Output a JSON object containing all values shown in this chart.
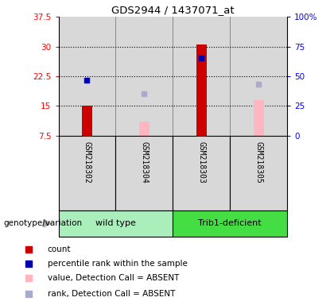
{
  "title": "GDS2944 / 1437071_at",
  "samples": [
    "GSM218302",
    "GSM218304",
    "GSM218303",
    "GSM218305"
  ],
  "ylim_left": [
    7.5,
    37.5
  ],
  "yticks_left": [
    7.5,
    15.0,
    22.5,
    30.0,
    37.5
  ],
  "ytick_labels_left": [
    "7.5",
    "15",
    "22.5",
    "30",
    "37.5"
  ],
  "yticks_right_val": [
    0,
    25,
    50,
    75,
    100
  ],
  "ytick_labels_right": [
    "0",
    "25",
    "50",
    "75",
    "100%"
  ],
  "dotted_lines": [
    15.0,
    22.5,
    30.0
  ],
  "bar_color_red": "#CC0000",
  "bar_color_pink": "#FFB6C1",
  "dot_color_blue": "#0000AA",
  "dot_color_lightblue": "#AAAACC",
  "red_bars": {
    "GSM218302": 15.0,
    "GSM218304": null,
    "GSM218303": 30.5,
    "GSM218305": null
  },
  "pink_bars": {
    "GSM218302": null,
    "GSM218304": 11.0,
    "GSM218303": null,
    "GSM218305": 16.5
  },
  "blue_dots": {
    "GSM218302": 21.5,
    "GSM218304": null,
    "GSM218303": 27.2,
    "GSM218305": null
  },
  "lightblue_dots": {
    "GSM218302": null,
    "GSM218304": 18.0,
    "GSM218303": null,
    "GSM218305": 20.5
  },
  "bar_base": 7.5,
  "plot_bg": "#FFFFFF",
  "plot_area_bg": "#FFFFFF",
  "sample_col_bg": "#D8D8D8",
  "group1_color": "#AAEEBB",
  "group2_color": "#44DD44",
  "legend_items": [
    {
      "label": "count",
      "color": "#CC0000"
    },
    {
      "label": "percentile rank within the sample",
      "color": "#0000AA"
    },
    {
      "label": "value, Detection Call = ABSENT",
      "color": "#FFB6C1"
    },
    {
      "label": "rank, Detection Call = ABSENT",
      "color": "#AAAACC"
    }
  ],
  "group_label": "genotype/variation"
}
